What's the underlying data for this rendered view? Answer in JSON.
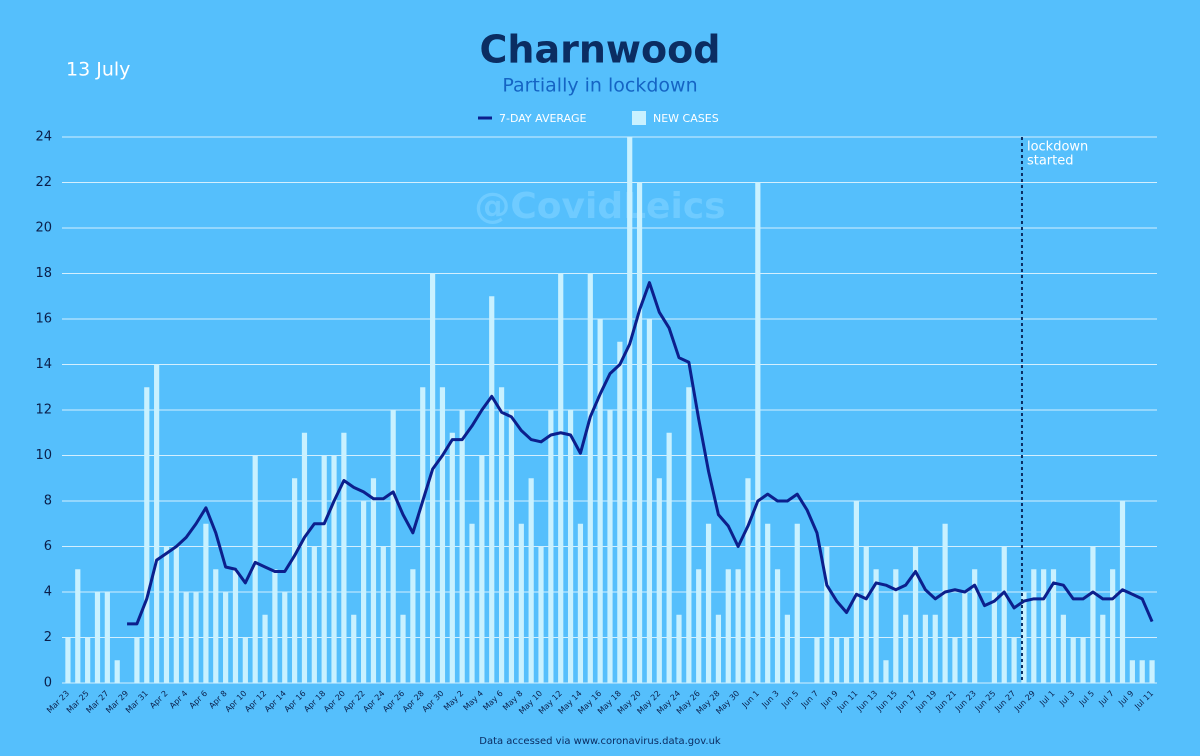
{
  "chart_data": {
    "type": "bar",
    "date": "13 July",
    "title": "Charnwood",
    "subtitle": "Partially in lockdown",
    "watermark": "@CovidLeics",
    "source": "Data accessed via www.coronavirus.data.gov.uk",
    "annotation": [
      "lockdown",
      "started"
    ],
    "background": "#55bffc",
    "grid": true,
    "legend": "top",
    "categories": [
      "Mar 23",
      null,
      "Mar 25",
      null,
      "Mar 27",
      null,
      "Mar 29",
      null,
      "Mar 31",
      null,
      "Apr 2",
      null,
      "Apr 4",
      null,
      "Apr 6",
      null,
      "Apr 8",
      null,
      "Apr 10",
      null,
      "Apr 12",
      null,
      "Apr 14",
      null,
      "Apr 16",
      null,
      "Apr 18",
      null,
      "Apr 20",
      null,
      "Apr 22",
      null,
      "Apr 24",
      null,
      "Apr 26",
      null,
      "Apr 28",
      null,
      "Apr 30",
      null,
      "May 2",
      null,
      "May 4",
      null,
      "May 6",
      null,
      "May 8",
      null,
      "May 10",
      null,
      "May 12",
      null,
      "May 14",
      null,
      "May 16",
      null,
      "May 18",
      null,
      "May 20",
      null,
      "May 22",
      null,
      "May 24",
      null,
      "May 26",
      null,
      "May 28",
      null,
      "May 30",
      null,
      "Jun 1",
      null,
      "Jun 3",
      null,
      "Jun 5",
      null,
      "Jun 7",
      null,
      "Jun 9",
      null,
      "Jun 11",
      null,
      "Jun 13",
      null,
      "Jun 15",
      null,
      "Jun 17",
      null,
      "Jun 19",
      null,
      "Jun 21",
      null,
      "Jun 23",
      null,
      "Jun 25",
      null,
      "Jun 27",
      null,
      "Jun 29",
      null,
      "Jul 1",
      null,
      "Jul 3",
      null,
      "Jul 5",
      null,
      "Jul 7",
      null,
      "Jul 9",
      null,
      "Jul 11"
    ],
    "series": [
      {
        "name": "7-DAY AVERAGE",
        "type": "line",
        "color": "#0c1f8c",
        "values": [
          null,
          null,
          null,
          null,
          null,
          null,
          2.6,
          2.6,
          3.7,
          5.4,
          5.7,
          6.0,
          6.4,
          7.0,
          7.7,
          6.6,
          5.1,
          5.0,
          4.4,
          5.3,
          5.1,
          4.9,
          4.9,
          5.6,
          6.4,
          7.0,
          7.0,
          8.0,
          8.9,
          8.6,
          8.4,
          8.1,
          8.1,
          8.4,
          7.4,
          6.6,
          8.0,
          9.4,
          10.0,
          10.7,
          10.7,
          11.3,
          12.0,
          12.6,
          11.9,
          11.7,
          11.1,
          10.7,
          10.6,
          10.9,
          11.0,
          10.9,
          10.1,
          11.7,
          12.7,
          13.6,
          14.0,
          14.9,
          16.4,
          17.6,
          16.3,
          15.6,
          14.3,
          14.1,
          11.6,
          9.3,
          7.4,
          6.9,
          6.0,
          6.9,
          8.0,
          8.3,
          8.0,
          8.0,
          8.3,
          7.6,
          6.6,
          4.3,
          3.6,
          3.1,
          3.9,
          3.7,
          4.4,
          4.3,
          4.1,
          4.3,
          4.9,
          4.1,
          3.7,
          4.0,
          4.1,
          4.0,
          4.3,
          3.4,
          3.6,
          4.0,
          3.3,
          3.6,
          3.7,
          3.7,
          4.4,
          4.3,
          3.7,
          3.7,
          4.0,
          3.7,
          3.7,
          4.1,
          3.9,
          3.7,
          2.7
        ]
      },
      {
        "name": "NEW CASES",
        "type": "bar",
        "color": "#c9f1ff",
        "values": [
          2,
          5,
          2,
          4,
          4,
          1,
          0,
          2,
          13,
          14,
          6,
          6,
          4,
          4,
          7,
          5,
          4,
          5,
          2,
          10,
          3,
          5,
          4,
          9,
          11,
          6,
          10,
          10,
          11,
          3,
          8,
          9,
          6,
          12,
          3,
          5,
          13,
          18,
          13,
          11,
          12,
          7,
          10,
          17,
          13,
          12,
          7,
          9,
          6,
          12,
          18,
          12,
          7,
          18,
          16,
          12,
          15,
          24,
          22,
          16,
          9,
          11,
          3,
          13,
          5,
          7,
          3,
          5,
          5,
          9,
          22,
          7,
          5,
          3,
          7,
          0,
          2,
          6,
          2,
          2,
          8,
          6,
          5,
          1,
          5,
          3,
          6,
          3,
          3,
          7,
          2,
          4,
          5,
          0,
          4,
          6,
          2,
          4,
          5,
          5,
          5,
          3,
          2,
          2,
          6,
          3,
          5,
          8,
          1,
          1,
          1
        ]
      }
    ],
    "ylim": [
      0,
      24
    ],
    "yticks": [
      0,
      2,
      4,
      6,
      8,
      10,
      12,
      14,
      16,
      18,
      20,
      22,
      24
    ]
  }
}
